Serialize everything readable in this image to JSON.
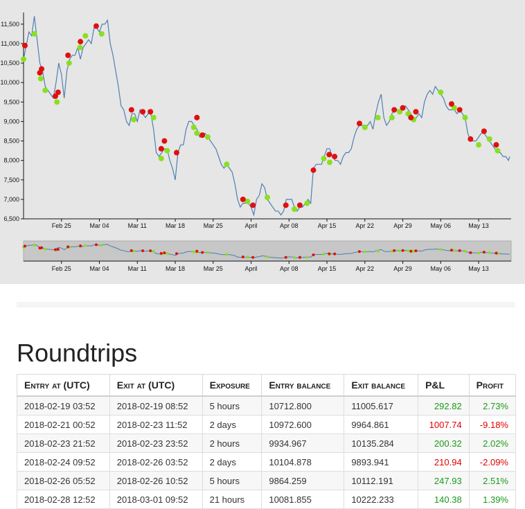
{
  "chart_data": {
    "type": "line",
    "ylabel": "",
    "xlabel": "",
    "ylim": [
      6500,
      11800
    ],
    "xlim": [
      "2018-02-18",
      "2018-05-19"
    ],
    "y_ticks": [
      "6,500",
      "7,000",
      "7,500",
      "8,000",
      "8,500",
      "9,000",
      "9,500",
      "10,000",
      "10,500",
      "11,000",
      "11,500"
    ],
    "y_tick_values": [
      6500,
      7000,
      7500,
      8000,
      8500,
      9000,
      9500,
      10000,
      10500,
      11000,
      11500
    ],
    "x_ticks": [
      "Feb 25",
      "Mar 04",
      "Mar 11",
      "Mar 18",
      "Mar 25",
      "April",
      "Apr 08",
      "Apr 15",
      "Apr 22",
      "Apr 29",
      "May 06",
      "May 13"
    ],
    "x_tick_dates": [
      "2018-02-25",
      "2018-03-04",
      "2018-03-11",
      "2018-03-18",
      "2018-03-25",
      "2018-04-01",
      "2018-04-08",
      "2018-04-15",
      "2018-04-22",
      "2018-04-29",
      "2018-05-06",
      "2018-05-13"
    ],
    "price_series": {
      "color": "#4f7fb0",
      "points": [
        [
          "2018-02-18 00:00",
          10600
        ],
        [
          "2018-02-18 12:00",
          10950
        ],
        [
          "2018-02-19 00:00",
          11300
        ],
        [
          "2018-02-19 12:00",
          11200
        ],
        [
          "2018-02-20 00:00",
          11700
        ],
        [
          "2018-02-20 12:00",
          11100
        ],
        [
          "2018-02-21 00:00",
          10500
        ],
        [
          "2018-02-21 12:00",
          10300
        ],
        [
          "2018-02-22 00:00",
          9900
        ],
        [
          "2018-02-22 12:00",
          9800
        ],
        [
          "2018-02-23 00:00",
          9700
        ],
        [
          "2018-02-23 12:00",
          9600
        ],
        [
          "2018-02-24 00:00",
          10000
        ],
        [
          "2018-02-24 12:00",
          10500
        ],
        [
          "2018-02-25 00:00",
          10200
        ],
        [
          "2018-02-25 12:00",
          9600
        ],
        [
          "2018-02-26 00:00",
          10300
        ],
        [
          "2018-02-26 12:00",
          10600
        ],
        [
          "2018-02-27 00:00",
          10700
        ],
        [
          "2018-02-27 12:00",
          10700
        ],
        [
          "2018-02-28 00:00",
          10900
        ],
        [
          "2018-02-28 12:00",
          10600
        ],
        [
          "2018-03-01 00:00",
          10900
        ],
        [
          "2018-03-01 12:00",
          11000
        ],
        [
          "2018-03-02 00:00",
          11100
        ],
        [
          "2018-03-02 12:00",
          11000
        ],
        [
          "2018-03-03 00:00",
          11400
        ],
        [
          "2018-03-03 12:00",
          11400
        ],
        [
          "2018-03-04 00:00",
          11300
        ],
        [
          "2018-03-04 12:00",
          11500
        ],
        [
          "2018-03-05 00:00",
          11500
        ],
        [
          "2018-03-05 12:00",
          11600
        ],
        [
          "2018-03-06 00:00",
          11000
        ],
        [
          "2018-03-06 12:00",
          10700
        ],
        [
          "2018-03-07 00:00",
          10300
        ],
        [
          "2018-03-07 12:00",
          9900
        ],
        [
          "2018-03-08 00:00",
          9400
        ],
        [
          "2018-03-08 12:00",
          9300
        ],
        [
          "2018-03-09 00:00",
          9000
        ],
        [
          "2018-03-09 12:00",
          8900
        ],
        [
          "2018-03-10 00:00",
          9200
        ],
        [
          "2018-03-10 12:00",
          9200
        ],
        [
          "2018-03-11 00:00",
          9000
        ],
        [
          "2018-03-11 12:00",
          9300
        ],
        [
          "2018-03-12 00:00",
          9200
        ],
        [
          "2018-03-12 12:00",
          9100
        ],
        [
          "2018-03-13 00:00",
          9200
        ],
        [
          "2018-03-13 12:00",
          9200
        ],
        [
          "2018-03-14 00:00",
          8800
        ],
        [
          "2018-03-14 12:00",
          8200
        ],
        [
          "2018-03-15 00:00",
          8100
        ],
        [
          "2018-03-15 12:00",
          8200
        ],
        [
          "2018-03-16 00:00",
          8300
        ],
        [
          "2018-03-16 12:00",
          8300
        ],
        [
          "2018-03-17 00:00",
          8000
        ],
        [
          "2018-03-17 12:00",
          7800
        ],
        [
          "2018-03-18 00:00",
          7500
        ],
        [
          "2018-03-18 12:00",
          8200
        ],
        [
          "2018-03-19 00:00",
          8400
        ],
        [
          "2018-03-19 12:00",
          8400
        ],
        [
          "2018-03-20 00:00",
          8800
        ],
        [
          "2018-03-20 12:00",
          9000
        ],
        [
          "2018-03-21 00:00",
          9000
        ],
        [
          "2018-03-21 12:00",
          8900
        ],
        [
          "2018-03-22 00:00",
          8800
        ],
        [
          "2018-03-22 12:00",
          8600
        ],
        [
          "2018-03-23 00:00",
          8600
        ],
        [
          "2018-03-23 12:00",
          8700
        ],
        [
          "2018-03-24 00:00",
          8600
        ],
        [
          "2018-03-24 12:00",
          8500
        ],
        [
          "2018-03-25 00:00",
          8400
        ],
        [
          "2018-03-25 12:00",
          8300
        ],
        [
          "2018-03-26 00:00",
          8100
        ],
        [
          "2018-03-26 12:00",
          7900
        ],
        [
          "2018-03-27 00:00",
          7800
        ],
        [
          "2018-03-27 12:00",
          7900
        ],
        [
          "2018-03-28 00:00",
          7800
        ],
        [
          "2018-03-28 12:00",
          7700
        ],
        [
          "2018-03-29 00:00",
          7400
        ],
        [
          "2018-03-29 12:00",
          7000
        ],
        [
          "2018-03-30 00:00",
          6800
        ],
        [
          "2018-03-30 12:00",
          6900
        ],
        [
          "2018-03-31 00:00",
          6900
        ],
        [
          "2018-03-31 12:00",
          6900
        ],
        [
          "2018-04-01 00:00",
          6800
        ],
        [
          "2018-04-01 12:00",
          6600
        ],
        [
          "2018-04-02 00:00",
          7000
        ],
        [
          "2018-04-02 12:00",
          7100
        ],
        [
          "2018-04-03 00:00",
          7400
        ],
        [
          "2018-04-03 12:00",
          7300
        ],
        [
          "2018-04-04 00:00",
          7000
        ],
        [
          "2018-04-04 12:00",
          6900
        ],
        [
          "2018-04-05 00:00",
          6800
        ],
        [
          "2018-04-05 12:00",
          6700
        ],
        [
          "2018-04-06 00:00",
          6700
        ],
        [
          "2018-04-06 12:00",
          6600
        ],
        [
          "2018-04-07 00:00",
          6700
        ],
        [
          "2018-04-07 12:00",
          7000
        ],
        [
          "2018-04-08 00:00",
          7000
        ],
        [
          "2018-04-08 12:00",
          7000
        ],
        [
          "2018-04-09 00:00",
          6800
        ],
        [
          "2018-04-09 12:00",
          6700
        ],
        [
          "2018-04-10 00:00",
          6800
        ],
        [
          "2018-04-10 12:00",
          6800
        ],
        [
          "2018-04-11 00:00",
          6900
        ],
        [
          "2018-04-11 12:00",
          7000
        ],
        [
          "2018-04-12 00:00",
          6900
        ],
        [
          "2018-04-12 12:00",
          7800
        ],
        [
          "2018-04-13 00:00",
          7900
        ],
        [
          "2018-04-13 12:00",
          7900
        ],
        [
          "2018-04-14 00:00",
          7900
        ],
        [
          "2018-04-14 12:00",
          8100
        ],
        [
          "2018-04-15 00:00",
          8300
        ],
        [
          "2018-04-15 12:00",
          8300
        ],
        [
          "2018-04-16 00:00",
          8100
        ],
        [
          "2018-04-16 12:00",
          8000
        ],
        [
          "2018-04-17 00:00",
          8000
        ],
        [
          "2018-04-17 12:00",
          7900
        ],
        [
          "2018-04-18 00:00",
          8100
        ],
        [
          "2018-04-18 12:00",
          8200
        ],
        [
          "2018-04-19 00:00",
          8200
        ],
        [
          "2018-04-19 12:00",
          8300
        ],
        [
          "2018-04-20 00:00",
          8600
        ],
        [
          "2018-04-20 12:00",
          8800
        ],
        [
          "2018-04-21 00:00",
          8900
        ],
        [
          "2018-04-21 12:00",
          8900
        ],
        [
          "2018-04-22 00:00",
          8900
        ],
        [
          "2018-04-22 12:00",
          8900
        ],
        [
          "2018-04-23 00:00",
          9000
        ],
        [
          "2018-04-23 12:00",
          8800
        ],
        [
          "2018-04-24 00:00",
          9200
        ],
        [
          "2018-04-24 12:00",
          9500
        ],
        [
          "2018-04-25 00:00",
          9700
        ],
        [
          "2018-04-25 12:00",
          9100
        ],
        [
          "2018-04-26 00:00",
          8900
        ],
        [
          "2018-04-26 12:00",
          9000
        ],
        [
          "2018-04-27 00:00",
          9200
        ],
        [
          "2018-04-27 12:00",
          9300
        ],
        [
          "2018-04-28 00:00",
          9300
        ],
        [
          "2018-04-28 12:00",
          9200
        ],
        [
          "2018-04-29 00:00",
          9300
        ],
        [
          "2018-04-29 12:00",
          9400
        ],
        [
          "2018-04-30 00:00",
          9300
        ],
        [
          "2018-04-30 12:00",
          9200
        ],
        [
          "2018-05-01 00:00",
          9000
        ],
        [
          "2018-05-01 12:00",
          9100
        ],
        [
          "2018-05-02 00:00",
          9200
        ],
        [
          "2018-05-02 12:00",
          9100
        ],
        [
          "2018-05-03 00:00",
          9500
        ],
        [
          "2018-05-03 12:00",
          9700
        ],
        [
          "2018-05-04 00:00",
          9800
        ],
        [
          "2018-05-04 12:00",
          9700
        ],
        [
          "2018-05-05 00:00",
          9900
        ],
        [
          "2018-05-05 12:00",
          9800
        ],
        [
          "2018-05-06 00:00",
          9700
        ],
        [
          "2018-05-06 12:00",
          9600
        ],
        [
          "2018-05-07 00:00",
          9400
        ],
        [
          "2018-05-07 12:00",
          9300
        ],
        [
          "2018-05-08 00:00",
          9300
        ],
        [
          "2018-05-08 12:00",
          9300
        ],
        [
          "2018-05-09 00:00",
          9200
        ],
        [
          "2018-05-09 12:00",
          9300
        ],
        [
          "2018-05-10 00:00",
          9200
        ],
        [
          "2018-05-10 12:00",
          9100
        ],
        [
          "2018-05-11 00:00",
          8700
        ],
        [
          "2018-05-11 12:00",
          8500
        ],
        [
          "2018-05-12 00:00",
          8500
        ],
        [
          "2018-05-12 12:00",
          8500
        ],
        [
          "2018-05-13 00:00",
          8600
        ],
        [
          "2018-05-13 12:00",
          8700
        ],
        [
          "2018-05-14 00:00",
          8700
        ],
        [
          "2018-05-14 12:00",
          8600
        ],
        [
          "2018-05-15 00:00",
          8500
        ],
        [
          "2018-05-15 12:00",
          8400
        ],
        [
          "2018-05-16 00:00",
          8300
        ],
        [
          "2018-05-16 12:00",
          8200
        ],
        [
          "2018-05-17 00:00",
          8200
        ],
        [
          "2018-05-17 12:00",
          8100
        ],
        [
          "2018-05-18 00:00",
          8100
        ],
        [
          "2018-05-18 12:00",
          8000
        ],
        [
          "2018-05-18 18:00",
          8100
        ]
      ]
    },
    "trade_markers": {
      "buy_color": "#e01010",
      "sell_color": "#88e020",
      "buys": [
        [
          "2018-02-18 06:00",
          10950
        ],
        [
          "2018-02-21 00:00",
          10250
        ],
        [
          "2018-02-21 08:00",
          10350
        ],
        [
          "2018-02-23 21:00",
          9650
        ],
        [
          "2018-02-24 09:00",
          9750
        ],
        [
          "2018-02-26 05:00",
          10700
        ],
        [
          "2018-02-28 12:00",
          11050
        ],
        [
          "2018-03-03 10:00",
          11450
        ],
        [
          "2018-03-09 22:00",
          9300
        ],
        [
          "2018-03-12 00:00",
          9250
        ],
        [
          "2018-03-13 10:00",
          9250
        ],
        [
          "2018-03-15 10:00",
          8300
        ],
        [
          "2018-03-16 00:00",
          8500
        ],
        [
          "2018-03-18 06:00",
          8200
        ],
        [
          "2018-03-22 00:00",
          9100
        ],
        [
          "2018-03-23 00:00",
          8650
        ],
        [
          "2018-03-30 12:00",
          7000
        ],
        [
          "2018-04-01 08:00",
          6850
        ],
        [
          "2018-04-07 10:00",
          6850
        ],
        [
          "2018-04-10 00:00",
          6850
        ],
        [
          "2018-04-12 12:00",
          7750
        ],
        [
          "2018-04-15 10:00",
          8150
        ],
        [
          "2018-04-16 10:00",
          8100
        ],
        [
          "2018-04-21 00:00",
          8950
        ],
        [
          "2018-04-27 10:00",
          9300
        ],
        [
          "2018-04-29 00:00",
          9350
        ],
        [
          "2018-04-30 12:00",
          9100
        ],
        [
          "2018-05-01 10:00",
          9250
        ],
        [
          "2018-05-08 00:00",
          9450
        ],
        [
          "2018-05-09 12:00",
          9300
        ],
        [
          "2018-05-11 12:00",
          8550
        ],
        [
          "2018-05-14 00:00",
          8750
        ],
        [
          "2018-05-16 06:00",
          8400
        ]
      ],
      "sells": [
        [
          "2018-02-18 00:00",
          10600
        ],
        [
          "2018-02-20 00:00",
          11250
        ],
        [
          "2018-02-21 04:00",
          10100
        ],
        [
          "2018-02-22 00:00",
          9800
        ],
        [
          "2018-02-24 04:00",
          9500
        ],
        [
          "2018-02-26 10:00",
          10500
        ],
        [
          "2018-02-28 10:00",
          10900
        ],
        [
          "2018-03-01 10:00",
          11200
        ],
        [
          "2018-03-04 10:00",
          11250
        ],
        [
          "2018-03-10 08:00",
          9050
        ],
        [
          "2018-03-14 00:00",
          9100
        ],
        [
          "2018-03-15 10:00",
          8050
        ],
        [
          "2018-03-16 12:00",
          8250
        ],
        [
          "2018-03-21 10:00",
          8850
        ],
        [
          "2018-03-22 00:00",
          8700
        ],
        [
          "2018-03-24 00:00",
          8600
        ],
        [
          "2018-03-27 12:00",
          7900
        ],
        [
          "2018-03-31 08:00",
          6950
        ],
        [
          "2018-04-04 00:00",
          7050
        ],
        [
          "2018-04-09 00:00",
          6750
        ],
        [
          "2018-04-11 08:00",
          6900
        ],
        [
          "2018-04-14 10:00",
          8050
        ],
        [
          "2018-04-15 12:00",
          7950
        ],
        [
          "2018-04-22 00:00",
          8850
        ],
        [
          "2018-04-24 10:00",
          9100
        ],
        [
          "2018-04-27 00:00",
          9100
        ],
        [
          "2018-04-28 10:00",
          9250
        ],
        [
          "2018-04-30 00:00",
          9200
        ],
        [
          "2018-05-01 00:00",
          9050
        ],
        [
          "2018-05-06 00:00",
          9750
        ],
        [
          "2018-05-08 12:00",
          9350
        ],
        [
          "2018-05-10 12:00",
          9100
        ],
        [
          "2018-05-13 00:00",
          8400
        ],
        [
          "2018-05-15 00:00",
          8550
        ],
        [
          "2018-05-16 12:00",
          8250
        ]
      ]
    },
    "navigator": {
      "x_ticks": [
        "Feb 25",
        "Mar 04",
        "Mar 11",
        "Mar 18",
        "Mar 25",
        "April",
        "Apr 08",
        "Apr 15",
        "Apr 22",
        "Apr 29",
        "May 06",
        "May 13"
      ]
    }
  },
  "roundtrips": {
    "title": "Roundtrips",
    "columns": [
      "Entry at (UTC)",
      "Exit at (UTC)",
      "Exposure",
      "Entry balance",
      "Exit balance",
      "P&L",
      "Profit"
    ],
    "rows": [
      {
        "entry_at": "2018-02-19 03:52",
        "exit_at": "2018-02-19 08:52",
        "exposure": "5 hours",
        "entry_balance": "10712.800",
        "exit_balance": "11005.617",
        "pnl": "292.82",
        "profit": "2.73%",
        "positive": true
      },
      {
        "entry_at": "2018-02-21 00:52",
        "exit_at": "2018-02-23 11:52",
        "exposure": "2 days",
        "entry_balance": "10972.600",
        "exit_balance": "9964.861",
        "pnl": "1007.74",
        "profit": "-9.18%",
        "positive": false
      },
      {
        "entry_at": "2018-02-23 21:52",
        "exit_at": "2018-02-23 23:52",
        "exposure": "2 hours",
        "entry_balance": "9934.967",
        "exit_balance": "10135.284",
        "pnl": "200.32",
        "profit": "2.02%",
        "positive": true
      },
      {
        "entry_at": "2018-02-24 09:52",
        "exit_at": "2018-02-26 03:52",
        "exposure": "2 days",
        "entry_balance": "10104.878",
        "exit_balance": "9893.941",
        "pnl": "210.94",
        "profit": "-2.09%",
        "positive": false
      },
      {
        "entry_at": "2018-02-26 05:52",
        "exit_at": "2018-02-26 10:52",
        "exposure": "5 hours",
        "entry_balance": "9864.259",
        "exit_balance": "10112.191",
        "pnl": "247.93",
        "profit": "2.51%",
        "positive": true
      },
      {
        "entry_at": "2018-02-28 12:52",
        "exit_at": "2018-03-01 09:52",
        "exposure": "21 hours",
        "entry_balance": "10081.855",
        "exit_balance": "10222.233",
        "pnl": "140.38",
        "profit": "1.39%",
        "positive": true
      }
    ]
  }
}
